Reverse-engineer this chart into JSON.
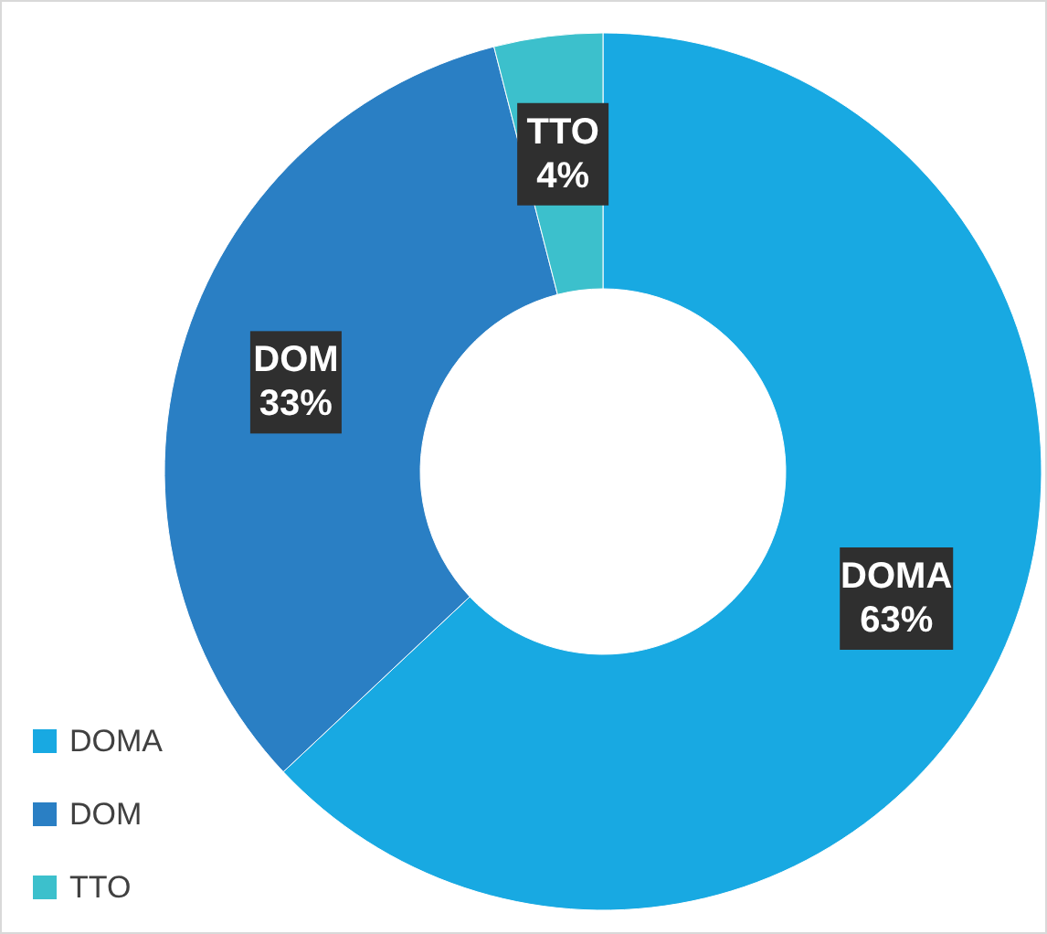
{
  "chart_data": {
    "type": "donut",
    "categories": [
      "DOMA",
      "DOM",
      "TTO"
    ],
    "values": [
      63,
      33,
      4
    ],
    "colors": [
      "#18a9e2",
      "#2a7fc4",
      "#3cc0cc"
    ],
    "value_labels": [
      "63%",
      "33%",
      "4%"
    ],
    "legend": "bottom left"
  }
}
